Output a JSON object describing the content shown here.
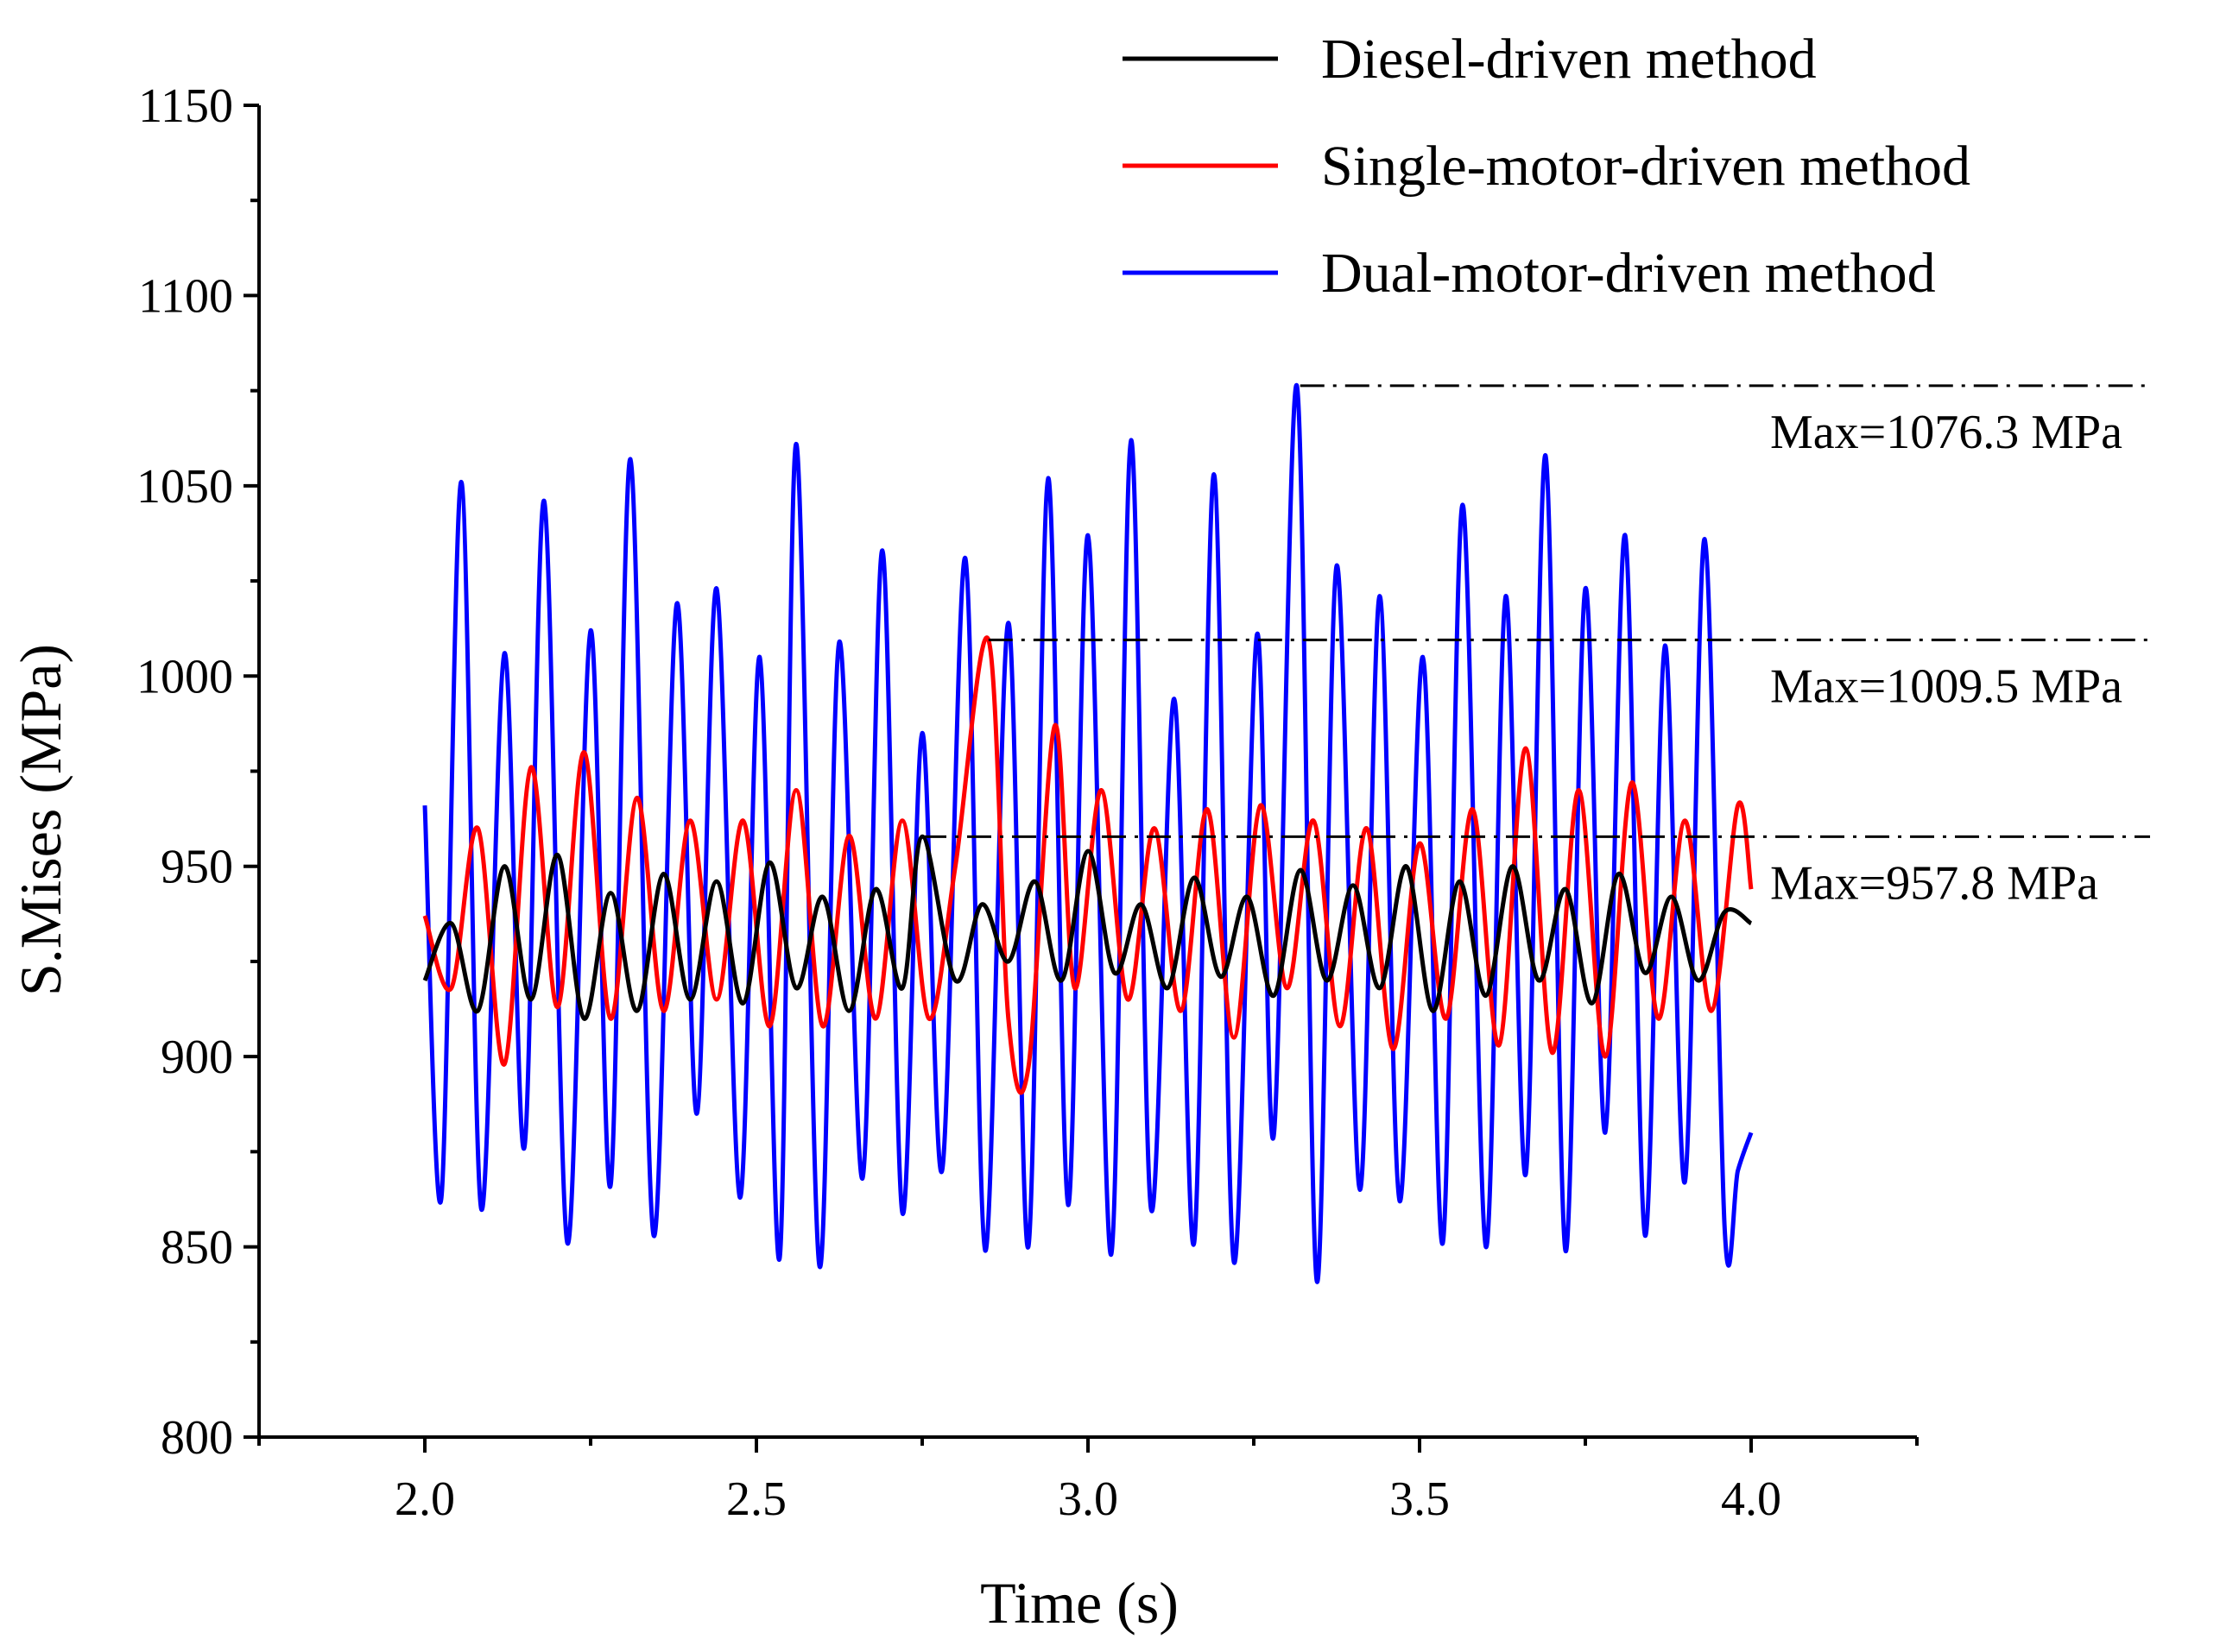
{
  "chart_data": {
    "type": "line",
    "title": "",
    "xlabel": "Time (s)",
    "ylabel": "S.Mises (MPa)",
    "xlim": [
      1.75,
      4.25
    ],
    "ylim": [
      800,
      1150
    ],
    "xticks": [
      "2.0",
      "2.5",
      "3.0",
      "3.5",
      "4.0"
    ],
    "yticks": [
      "800",
      "850",
      "900",
      "950",
      "1000",
      "1050",
      "1100",
      "1150"
    ],
    "grid": false,
    "legend_position": "top-right",
    "series": [
      {
        "name": "Diesel-driven method",
        "color": "#000000",
        "x": [
          2.0,
          2.04,
          2.08,
          2.12,
          2.16,
          2.2,
          2.24,
          2.28,
          2.32,
          2.36,
          2.4,
          2.44,
          2.48,
          2.52,
          2.56,
          2.6,
          2.64,
          2.68,
          2.72,
          2.75,
          2.8,
          2.84,
          2.88,
          2.92,
          2.96,
          3.0,
          3.04,
          3.08,
          3.12,
          3.16,
          3.2,
          3.24,
          3.28,
          3.32,
          3.36,
          3.4,
          3.44,
          3.48,
          3.52,
          3.56,
          3.6,
          3.64,
          3.68,
          3.72,
          3.76,
          3.8,
          3.84,
          3.88,
          3.92,
          3.96,
          4.0
        ],
        "values": [
          920,
          935,
          912,
          950,
          915,
          953,
          910,
          943,
          912,
          948,
          915,
          946,
          914,
          951,
          918,
          942,
          912,
          944,
          918,
          957.8,
          920,
          940,
          925,
          946,
          920,
          954,
          922,
          940,
          918,
          947,
          921,
          942,
          916,
          949,
          920,
          945,
          918,
          950,
          912,
          946,
          916,
          950,
          920,
          944,
          914,
          948,
          922,
          942,
          920,
          938,
          935
        ]
      },
      {
        "name": "Single-motor-driven method",
        "color": "#ff0000",
        "x": [
          2.0,
          2.04,
          2.08,
          2.12,
          2.16,
          2.2,
          2.24,
          2.28,
          2.32,
          2.36,
          2.4,
          2.44,
          2.48,
          2.52,
          2.56,
          2.6,
          2.64,
          2.68,
          2.72,
          2.76,
          2.8,
          2.85,
          2.88,
          2.91,
          2.95,
          2.98,
          3.02,
          3.06,
          3.1,
          3.14,
          3.18,
          3.22,
          3.26,
          3.3,
          3.34,
          3.38,
          3.42,
          3.46,
          3.5,
          3.54,
          3.58,
          3.62,
          3.66,
          3.7,
          3.74,
          3.78,
          3.82,
          3.86,
          3.9,
          3.94,
          3.98,
          4.0
        ],
        "values": [
          937,
          918,
          960,
          898,
          976,
          913,
          980,
          910,
          968,
          912,
          962,
          915,
          962,
          908,
          970,
          908,
          958,
          910,
          962,
          910,
          950,
          1009.5,
          910,
          897,
          987,
          918,
          970,
          915,
          960,
          912,
          965,
          905,
          966,
          918,
          962,
          908,
          960,
          902,
          956,
          910,
          965,
          903,
          981,
          901,
          970,
          900,
          972,
          910,
          962,
          912,
          966,
          944
        ]
      },
      {
        "name": "Dual-motor-driven method",
        "color": "#0000ff",
        "x": [
          2.0,
          2.025,
          2.055,
          2.085,
          2.12,
          2.15,
          2.18,
          2.215,
          2.25,
          2.28,
          2.31,
          2.345,
          2.38,
          2.41,
          2.44,
          2.475,
          2.505,
          2.535,
          2.56,
          2.595,
          2.625,
          2.66,
          2.69,
          2.72,
          2.75,
          2.78,
          2.815,
          2.845,
          2.88,
          2.91,
          2.94,
          2.97,
          3.0,
          3.035,
          3.065,
          3.095,
          3.13,
          3.16,
          3.19,
          3.22,
          3.255,
          3.28,
          3.315,
          3.345,
          3.375,
          3.41,
          3.44,
          3.47,
          3.505,
          3.535,
          3.565,
          3.6,
          3.63,
          3.66,
          3.69,
          3.72,
          3.75,
          3.78,
          3.81,
          3.84,
          3.87,
          3.9,
          3.93,
          3.96,
          3.98,
          4.0
        ],
        "values": [
          966,
          863,
          1051,
          860,
          1006,
          876,
          1046,
          851,
          1012,
          866,
          1057,
          853,
          1019,
          885,
          1023,
          863,
          1005,
          847,
          1061,
          845,
          1009,
          868,
          1033,
          859,
          985,
          870,
          1031,
          849,
          1014,
          850,
          1052,
          861,
          1037,
          848,
          1062,
          860,
          994,
          851,
          1053,
          846,
          1011,
          879,
          1076.3,
          841,
          1029,
          865,
          1021,
          862,
          1005,
          851,
          1045,
          850,
          1021,
          869,
          1058,
          849,
          1023,
          880,
          1037,
          853,
          1008,
          867,
          1036,
          855,
          870,
          880
        ]
      }
    ],
    "annotations": [
      {
        "label": "Max=1076.3 MPa",
        "value": 1076.3,
        "from_x": 3.32
      },
      {
        "label": "Max=1009.5 MPa",
        "value": 1009.5,
        "from_x": 2.85
      },
      {
        "label": "Max=957.8 MPa",
        "value": 957.8,
        "from_x": 2.75
      }
    ]
  }
}
